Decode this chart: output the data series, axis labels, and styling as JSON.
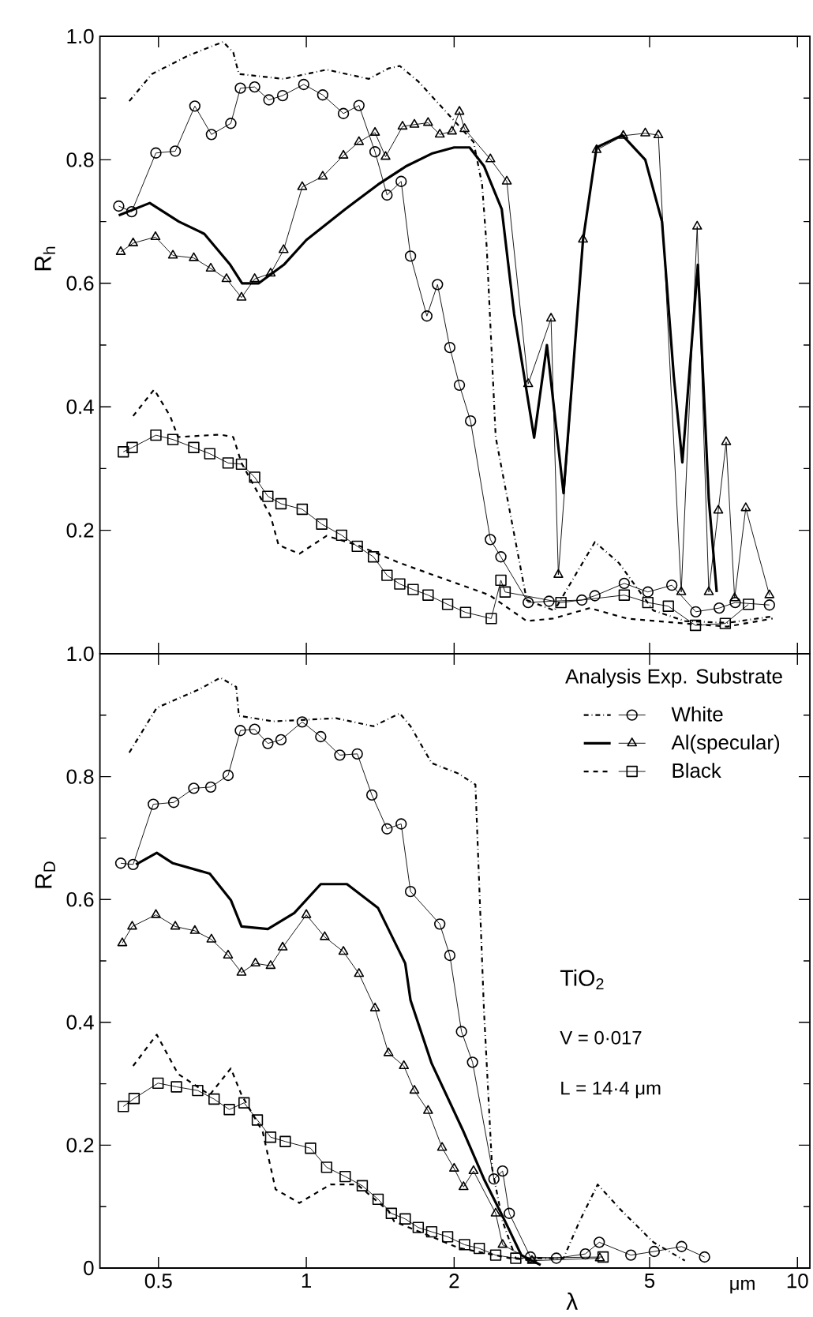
{
  "chart_data": [
    {
      "type": "line",
      "ylabel": "R$_{h}$",
      "log": "x",
      "tick_labels": "y",
      "xlim": [
        0.38,
        10.6
      ],
      "ylim": [
        0,
        1.0
      ],
      "xticks": [
        0.5,
        1,
        2,
        5,
        10
      ],
      "yticks": [
        {
          "value": 0.2,
          "label": "0.2"
        },
        {
          "value": 0.4,
          "label": "0.4"
        },
        {
          "value": 0.6,
          "label": "0.6"
        },
        {
          "value": 0.8,
          "label": "0.8"
        },
        {
          "value": 1.0,
          "label": "1.0"
        }
      ],
      "series": [
        {
          "color": "#000000",
          "line_style": "dashdot",
          "marker": "none",
          "x": [
            0.436,
            0.485,
            0.576,
            0.677,
            0.71,
            0.729,
            0.899,
            1.1,
            1.34,
            1.47,
            1.55,
            1.69,
            1.94,
            2.19,
            2.28,
            2.33,
            2.43,
            2.81,
            3.2,
            3.87,
            4.33,
            5.09,
            5.9,
            7.2,
            8.8
          ],
          "values": [
            0.895,
            0.939,
            0.969,
            0.991,
            0.974,
            0.939,
            0.931,
            0.946,
            0.931,
            0.948,
            0.952,
            0.927,
            0.875,
            0.829,
            0.76,
            0.658,
            0.351,
            0.087,
            0.07,
            0.181,
            0.147,
            0.07,
            0.053,
            0.05,
            0.06
          ]
        },
        {
          "color": "#000000",
          "line_style": "solid",
          "marker": "circle",
          "x": [
            0.415,
            0.441,
            0.494,
            0.541,
            0.593,
            0.641,
            0.702,
            0.734,
            0.785,
            0.839,
            0.895,
            0.988,
            1.08,
            1.19,
            1.28,
            1.38,
            1.46,
            1.56,
            1.63,
            1.76,
            1.85,
            1.96,
            2.05,
            2.16,
            2.37,
            2.49,
            2.83,
            3.12,
            3.64,
            3.87,
            4.44,
            4.96,
            5.55,
            6.21,
            6.93,
            7.47,
            8.77
          ],
          "values": [
            0.725,
            0.716,
            0.811,
            0.814,
            0.887,
            0.841,
            0.859,
            0.916,
            0.918,
            0.897,
            0.904,
            0.922,
            0.905,
            0.875,
            0.888,
            0.813,
            0.743,
            0.765,
            0.644,
            0.547,
            0.598,
            0.496,
            0.435,
            0.377,
            0.185,
            0.157,
            0.083,
            0.085,
            0.087,
            0.094,
            0.114,
            0.1,
            0.111,
            0.068,
            0.074,
            0.083,
            0.079
          ]
        },
        {
          "color": "#000000",
          "line_style": "solid",
          "marker": "none",
          "x": [
            0.415,
            0.48,
            0.55,
            0.62,
            0.7,
            0.74,
            0.8,
            0.9,
            1.0,
            1.2,
            1.4,
            1.6,
            1.8,
            2.0,
            2.15,
            2.3,
            2.5,
            2.65,
            2.91,
            3.09,
            3.34,
            3.66,
            3.9,
            4.4,
            4.9,
            5.3,
            5.6,
            5.83,
            6.27,
            6.6,
            6.85
          ],
          "values": [
            0.71,
            0.73,
            0.7,
            0.68,
            0.63,
            0.6,
            0.6,
            0.63,
            0.67,
            0.72,
            0.76,
            0.79,
            0.81,
            0.82,
            0.82,
            0.79,
            0.72,
            0.55,
            0.35,
            0.5,
            0.26,
            0.67,
            0.82,
            0.84,
            0.8,
            0.7,
            0.45,
            0.31,
            0.63,
            0.25,
            0.1
          ]
        },
        {
          "color": "#000000",
          "line_style": "solid",
          "marker": "triangle",
          "x": [
            0.419,
            0.444,
            0.493,
            0.535,
            0.59,
            0.639,
            0.688,
            0.738,
            0.785,
            0.846,
            0.899,
            0.981,
            1.08,
            1.19,
            1.28,
            1.38,
            1.45,
            1.57,
            1.66,
            1.77,
            1.87,
            1.98,
            2.05,
            2.1,
            2.37,
            2.56,
            2.83,
            3.15,
            3.26,
            3.66,
            3.9,
            4.42,
            4.9,
            5.21,
            5.8,
            6.25,
            6.6,
            6.9,
            7.16,
            7.45,
            7.85,
            8.77
          ],
          "values": [
            0.651,
            0.665,
            0.675,
            0.645,
            0.641,
            0.624,
            0.607,
            0.577,
            0.607,
            0.616,
            0.654,
            0.756,
            0.773,
            0.807,
            0.829,
            0.844,
            0.805,
            0.854,
            0.857,
            0.86,
            0.841,
            0.846,
            0.878,
            0.85,
            0.801,
            0.765,
            0.437,
            0.543,
            0.128,
            0.671,
            0.816,
            0.839,
            0.843,
            0.84,
            0.1,
            0.692,
            0.1,
            0.232,
            0.343,
            0.09,
            0.236,
            0.095
          ]
        },
        {
          "color": "#000000",
          "line_style": "dashed",
          "marker": "none",
          "x": [
            0.444,
            0.49,
            0.528,
            0.548,
            0.668,
            0.71,
            0.738,
            0.846,
            0.878,
            0.968,
            1.1,
            1.27,
            1.55,
            2.04,
            2.36,
            2.81,
            3.18,
            3.78,
            4.5,
            5.9,
            7.2,
            8.9
          ],
          "values": [
            0.385,
            0.428,
            0.385,
            0.351,
            0.355,
            0.351,
            0.309,
            0.223,
            0.176,
            0.162,
            0.191,
            0.176,
            0.147,
            0.113,
            0.095,
            0.053,
            0.057,
            0.074,
            0.057,
            0.049,
            0.044,
            0.057
          ]
        },
        {
          "color": "#000000",
          "line_style": "solid",
          "marker": "square",
          "x": [
            0.424,
            0.442,
            0.494,
            0.535,
            0.59,
            0.636,
            0.693,
            0.738,
            0.785,
            0.835,
            0.888,
            0.981,
            1.075,
            1.18,
            1.27,
            1.37,
            1.46,
            1.55,
            1.65,
            1.77,
            1.94,
            2.11,
            2.38,
            2.49,
            2.54,
            3.3,
            4.44,
            4.96,
            5.46,
            6.2,
            7.13,
            7.95
          ],
          "values": [
            0.327,
            0.334,
            0.354,
            0.347,
            0.334,
            0.324,
            0.309,
            0.307,
            0.286,
            0.255,
            0.243,
            0.234,
            0.21,
            0.192,
            0.174,
            0.157,
            0.127,
            0.113,
            0.104,
            0.095,
            0.08,
            0.067,
            0.057,
            0.119,
            0.1,
            0.083,
            0.095,
            0.083,
            0.077,
            0.046,
            0.049,
            0.08
          ]
        }
      ]
    },
    {
      "type": "line",
      "xlabel": "λ",
      "ylabel": "R$_{D}$",
      "log": "x",
      "legend": "top right",
      "legend_title": "Analysis Exp. Substrate",
      "xlim": [
        0.38,
        10.6
      ],
      "ylim": [
        0,
        1.0
      ],
      "xticks": [
        {
          "value": 0.5,
          "label": "0.5"
        },
        1,
        2,
        5,
        10
      ],
      "yticks": [
        0,
        {
          "value": 0.2,
          "label": "0.2"
        },
        {
          "value": 0.4,
          "label": "0.4"
        },
        {
          "value": 0.6,
          "label": "0.6"
        },
        {
          "value": 0.8,
          "label": "0.8"
        },
        {
          "value": 1.0,
          "label": "1.0"
        }
      ],
      "annotations": [
        "TiO$_{2}$",
        "V = 0·017",
        "L = 14·4  μm",
        "μm"
      ],
      "series": [
        {
          "color": "#000000",
          "line_style": "dashdot",
          "marker": "none",
          "x": [
            0.436,
            0.496,
            0.605,
            0.668,
            0.72,
            0.729,
            0.856,
            1.15,
            1.37,
            1.55,
            1.63,
            1.8,
            2.04,
            2.21,
            2.3,
            2.39,
            2.51,
            2.67,
            3.34,
            3.6,
            3.92,
            4.39,
            5.09,
            5.9
          ],
          "values": [
            0.839,
            0.912,
            0.942,
            0.961,
            0.946,
            0.899,
            0.89,
            0.895,
            0.882,
            0.903,
            0.882,
            0.822,
            0.805,
            0.787,
            0.419,
            0.162,
            0.076,
            0.016,
            0.016,
            0.076,
            0.136,
            0.093,
            0.042,
            0.012
          ]
        },
        {
          "name": "White",
          "color": "#000000",
          "line_style": "solid",
          "marker": "circle",
          "x": [
            0.419,
            0.444,
            0.488,
            0.537,
            0.59,
            0.639,
            0.693,
            0.734,
            0.785,
            0.835,
            0.888,
            0.981,
            1.07,
            1.17,
            1.27,
            1.36,
            1.46,
            1.56,
            1.63,
            1.87,
            1.96,
            2.07,
            2.18,
            2.41,
            2.51,
            2.59,
            2.86,
            3.23,
            3.7,
            3.95,
            4.58,
            5.11,
            5.81,
            6.47
          ],
          "values": [
            0.659,
            0.657,
            0.755,
            0.758,
            0.781,
            0.783,
            0.802,
            0.875,
            0.877,
            0.854,
            0.86,
            0.889,
            0.865,
            0.835,
            0.837,
            0.77,
            0.715,
            0.723,
            0.613,
            0.56,
            0.509,
            0.385,
            0.335,
            0.145,
            0.158,
            0.089,
            0.018,
            0.016,
            0.023,
            0.042,
            0.021,
            0.027,
            0.035,
            0.018
          ]
        },
        {
          "color": "#000000",
          "line_style": "solid",
          "marker": "none",
          "x": [
            0.45,
            0.496,
            0.535,
            0.636,
            0.702,
            0.738,
            0.835,
            0.945,
            1.07,
            1.21,
            1.4,
            1.59,
            1.63,
            1.8,
            2.09,
            2.3,
            2.54,
            2.74,
            3.0
          ],
          "values": [
            0.657,
            0.676,
            0.659,
            0.642,
            0.599,
            0.556,
            0.552,
            0.578,
            0.625,
            0.625,
            0.586,
            0.496,
            0.436,
            0.333,
            0.222,
            0.145,
            0.076,
            0.021,
            0.005
          ]
        },
        {
          "name": "Al(specular)",
          "color": "#000000",
          "line_style": "solid",
          "marker": "triangle",
          "x": [
            0.422,
            0.442,
            0.494,
            0.541,
            0.593,
            0.641,
            0.693,
            0.738,
            0.788,
            0.846,
            0.895,
            1.0,
            1.09,
            1.19,
            1.28,
            1.38,
            1.47,
            1.58,
            1.66,
            1.77,
            1.89,
            2.0,
            2.09,
            2.19,
            2.43,
            2.51,
            2.88,
            3.96
          ],
          "values": [
            0.529,
            0.556,
            0.575,
            0.556,
            0.549,
            0.535,
            0.509,
            0.481,
            0.496,
            0.492,
            0.522,
            0.575,
            0.539,
            0.515,
            0.479,
            0.423,
            0.35,
            0.329,
            0.289,
            0.256,
            0.196,
            0.162,
            0.132,
            0.158,
            0.089,
            0.038,
            0.012,
            0.016
          ]
        },
        {
          "color": "#000000",
          "line_style": "dashed",
          "marker": "none",
          "x": [
            0.444,
            0.496,
            0.548,
            0.636,
            0.702,
            0.738,
            0.815,
            0.866,
            0.968,
            1.12,
            1.27,
            1.47,
            1.51,
            2.04,
            2.6,
            2.95
          ],
          "values": [
            0.329,
            0.38,
            0.316,
            0.282,
            0.325,
            0.282,
            0.222,
            0.128,
            0.106,
            0.136,
            0.136,
            0.093,
            0.076,
            0.033,
            0.016,
            0.012
          ]
        },
        {
          "name": "Black",
          "color": "#000000",
          "line_style": "solid",
          "marker": "square",
          "x": [
            0.424,
            0.446,
            0.499,
            0.544,
            0.601,
            0.649,
            0.697,
            0.747,
            0.795,
            0.846,
            0.906,
            1.02,
            1.1,
            1.2,
            1.3,
            1.4,
            1.49,
            1.59,
            1.69,
            1.8,
            1.94,
            2.1,
            2.25,
            2.43,
            2.67,
            4.02
          ],
          "values": [
            0.263,
            0.276,
            0.301,
            0.295,
            0.289,
            0.275,
            0.258,
            0.269,
            0.241,
            0.213,
            0.206,
            0.195,
            0.164,
            0.149,
            0.134,
            0.112,
            0.089,
            0.08,
            0.066,
            0.059,
            0.051,
            0.038,
            0.032,
            0.021,
            0.016,
            0.018
          ]
        }
      ]
    }
  ]
}
